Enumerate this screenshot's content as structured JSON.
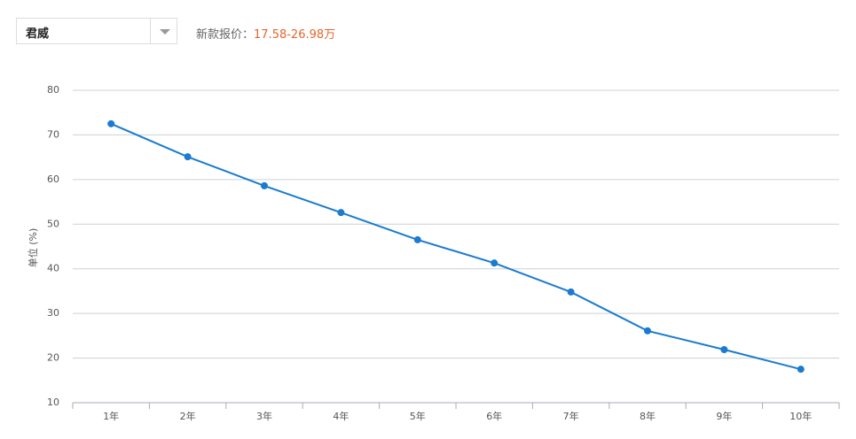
{
  "header": {
    "model": "君威",
    "price_label": "新款报价：",
    "price_value": "17.58-26.98万"
  },
  "chart_data": {
    "type": "line",
    "y_label": "单位 (%)",
    "categories": [
      "1年",
      "2年",
      "3年",
      "4年",
      "5年",
      "6年",
      "7年",
      "8年",
      "9年",
      "10年"
    ],
    "series": [
      {
        "color": "#1a7bd0",
        "values": [
          72.5,
          65.1,
          58.6,
          52.6,
          46.5,
          41.3,
          34.8,
          26.1,
          21.9,
          17.5
        ]
      }
    ],
    "ylim": [
      10,
      80
    ],
    "yticks": [
      10,
      20,
      30,
      40,
      50,
      60,
      70,
      80
    ],
    "grid": true
  }
}
